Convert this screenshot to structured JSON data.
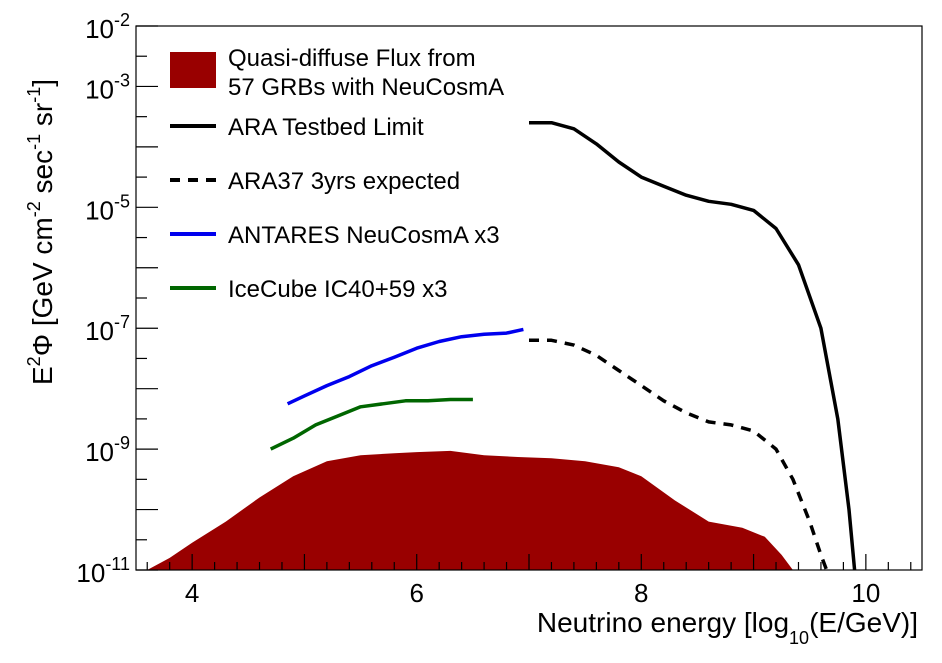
{
  "chart_data": {
    "type": "line",
    "xlabel_main": "Neutrino energy [log",
    "xlabel_sub": "10",
    "xlabel_tail": "(E/GeV)]",
    "ylabel_parts": {
      "a": "E",
      "a_sup": "2",
      "b": "Φ [GeV cm",
      "b_sup": "-2",
      "c": " sec",
      "c_sup": "-1",
      "d": " sr",
      "d_sup": "-1",
      "e": "]"
    },
    "xlim": [
      3.5,
      10.5
    ],
    "ylim_log10": [
      -11,
      -2
    ],
    "y_scale": "log",
    "x_ticks": [
      4,
      6,
      8,
      10
    ],
    "x_tick_labels": [
      "4",
      "6",
      "8",
      "10"
    ],
    "y_ticks_log10": [
      -11,
      -9,
      -7,
      -5,
      -3,
      -2
    ],
    "y_tick_base": "10",
    "y_tick_exps": [
      "-11",
      "-9",
      "-7",
      "-5",
      "-3",
      "-2"
    ],
    "legend_position": "top-left",
    "series": [
      {
        "name": "Quasi-diffuse Flux from 57 GRBs with NeuCosmA",
        "legend_lines": [
          "Quasi-diffuse Flux from",
          "57 GRBs with NeuCosmA"
        ],
        "style": "filled",
        "color": "#990000",
        "x": [
          3.6,
          3.8,
          4.0,
          4.3,
          4.6,
          4.9,
          5.2,
          5.5,
          5.8,
          6.0,
          6.3,
          6.6,
          6.9,
          7.2,
          7.5,
          7.8,
          8.0,
          8.3,
          8.6,
          8.9,
          9.1,
          9.25,
          9.35
        ],
        "y_log10": [
          -11.0,
          -10.8,
          -10.55,
          -10.2,
          -9.8,
          -9.45,
          -9.2,
          -9.1,
          -9.07,
          -9.05,
          -9.03,
          -9.1,
          -9.13,
          -9.15,
          -9.2,
          -9.3,
          -9.45,
          -9.85,
          -10.2,
          -10.3,
          -10.45,
          -10.75,
          -11.0
        ]
      },
      {
        "name": "ARA Testbed Limit",
        "legend_lines": [
          "ARA Testbed Limit"
        ],
        "style": "solid",
        "color": "#000000",
        "x": [
          7.0,
          7.2,
          7.4,
          7.6,
          7.8,
          8.0,
          8.2,
          8.4,
          8.6,
          8.8,
          9.0,
          9.2,
          9.4,
          9.6,
          9.75,
          9.85,
          9.9
        ],
        "y_log10": [
          -3.6,
          -3.6,
          -3.7,
          -3.95,
          -4.25,
          -4.5,
          -4.65,
          -4.8,
          -4.9,
          -4.95,
          -5.05,
          -5.35,
          -5.95,
          -7.0,
          -8.5,
          -10.0,
          -11.0
        ]
      },
      {
        "name": "ARA37 3yrs expected",
        "legend_lines": [
          "ARA37 3yrs expected"
        ],
        "style": "dashed",
        "color": "#000000",
        "x": [
          7.0,
          7.2,
          7.4,
          7.6,
          7.8,
          8.0,
          8.2,
          8.4,
          8.6,
          8.8,
          9.0,
          9.2,
          9.35,
          9.5,
          9.6,
          9.65
        ],
        "y_log10": [
          -7.2,
          -7.2,
          -7.28,
          -7.45,
          -7.7,
          -7.95,
          -8.2,
          -8.4,
          -8.55,
          -8.6,
          -8.7,
          -9.0,
          -9.5,
          -10.2,
          -10.75,
          -11.0
        ]
      },
      {
        "name": "ANTARES NeuCosmA x3",
        "legend_lines": [
          "ANTARES NeuCosmA x3"
        ],
        "style": "solid",
        "color": "#0000ee",
        "x": [
          4.85,
          5.0,
          5.2,
          5.4,
          5.6,
          5.8,
          6.0,
          6.2,
          6.4,
          6.6,
          6.8,
          6.95
        ],
        "y_log10": [
          -8.25,
          -8.12,
          -7.95,
          -7.8,
          -7.62,
          -7.48,
          -7.33,
          -7.22,
          -7.14,
          -7.1,
          -7.08,
          -7.02
        ]
      },
      {
        "name": "IceCube IC40+59 x3",
        "legend_lines": [
          "IceCube IC40+59 x3"
        ],
        "style": "solid",
        "color": "#006600",
        "x": [
          4.7,
          4.9,
          5.1,
          5.3,
          5.5,
          5.7,
          5.9,
          6.1,
          6.3,
          6.5
        ],
        "y_log10": [
          -9.0,
          -8.82,
          -8.6,
          -8.45,
          -8.3,
          -8.25,
          -8.2,
          -8.2,
          -8.18,
          -8.18
        ]
      }
    ]
  }
}
